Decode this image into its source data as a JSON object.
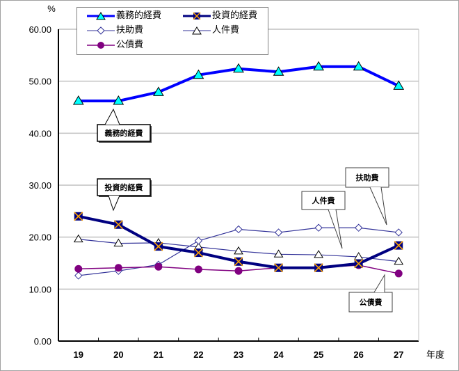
{
  "chart_data": {
    "type": "line",
    "title": "",
    "xlabel": "年度",
    "ylabel": "%",
    "ylim": [
      0,
      60
    ],
    "yticks": [
      "0.00",
      "10.00",
      "20.00",
      "30.00",
      "40.00",
      "50.00",
      "60.00"
    ],
    "categories": [
      "19",
      "20",
      "21",
      "22",
      "23",
      "24",
      "25",
      "26",
      "27"
    ],
    "grid": true,
    "legend_position": "top",
    "series": [
      {
        "name": "義務的経費",
        "color": "#0000ff",
        "marker": "triangle-filled-cyan",
        "values": [
          46.2,
          46.2,
          47.9,
          51.2,
          52.4,
          51.8,
          52.8,
          52.8,
          49.1
        ]
      },
      {
        "name": "投資的経費",
        "color": "#000080",
        "marker": "square-x-orange",
        "values": [
          24.0,
          22.4,
          18.2,
          17.0,
          15.3,
          14.1,
          14.1,
          14.9,
          18.4
        ]
      },
      {
        "name": "扶助費",
        "color": "#333399",
        "marker": "diamond-open",
        "values": [
          12.6,
          13.5,
          14.7,
          19.3,
          21.5,
          20.9,
          21.8,
          21.8,
          20.9
        ]
      },
      {
        "name": "人件費",
        "color": "#333399",
        "marker": "triangle-open",
        "values": [
          19.6,
          18.8,
          18.9,
          18.1,
          17.3,
          16.7,
          16.6,
          16.2,
          15.3
        ]
      },
      {
        "name": "公債費",
        "color": "#800080",
        "marker": "circle-filled",
        "values": [
          13.9,
          14.1,
          14.3,
          13.8,
          13.5,
          14.1,
          14.1,
          14.6,
          13.0
        ]
      }
    ],
    "annotations": [
      "義務的経費",
      "投資的経費",
      "人件費",
      "扶助費",
      "公債費"
    ]
  },
  "legend": {
    "items": [
      "義務的経費",
      "投資的経費",
      "扶助費",
      "人件費",
      "公債費"
    ]
  },
  "callouts": {
    "gimu": "義務的経費",
    "toshi": "投資的経費",
    "jinken": "人件費",
    "fujo": "扶助費",
    "kosai": "公債費"
  },
  "axis": {
    "y_unit": "%",
    "x_unit": "年度"
  }
}
